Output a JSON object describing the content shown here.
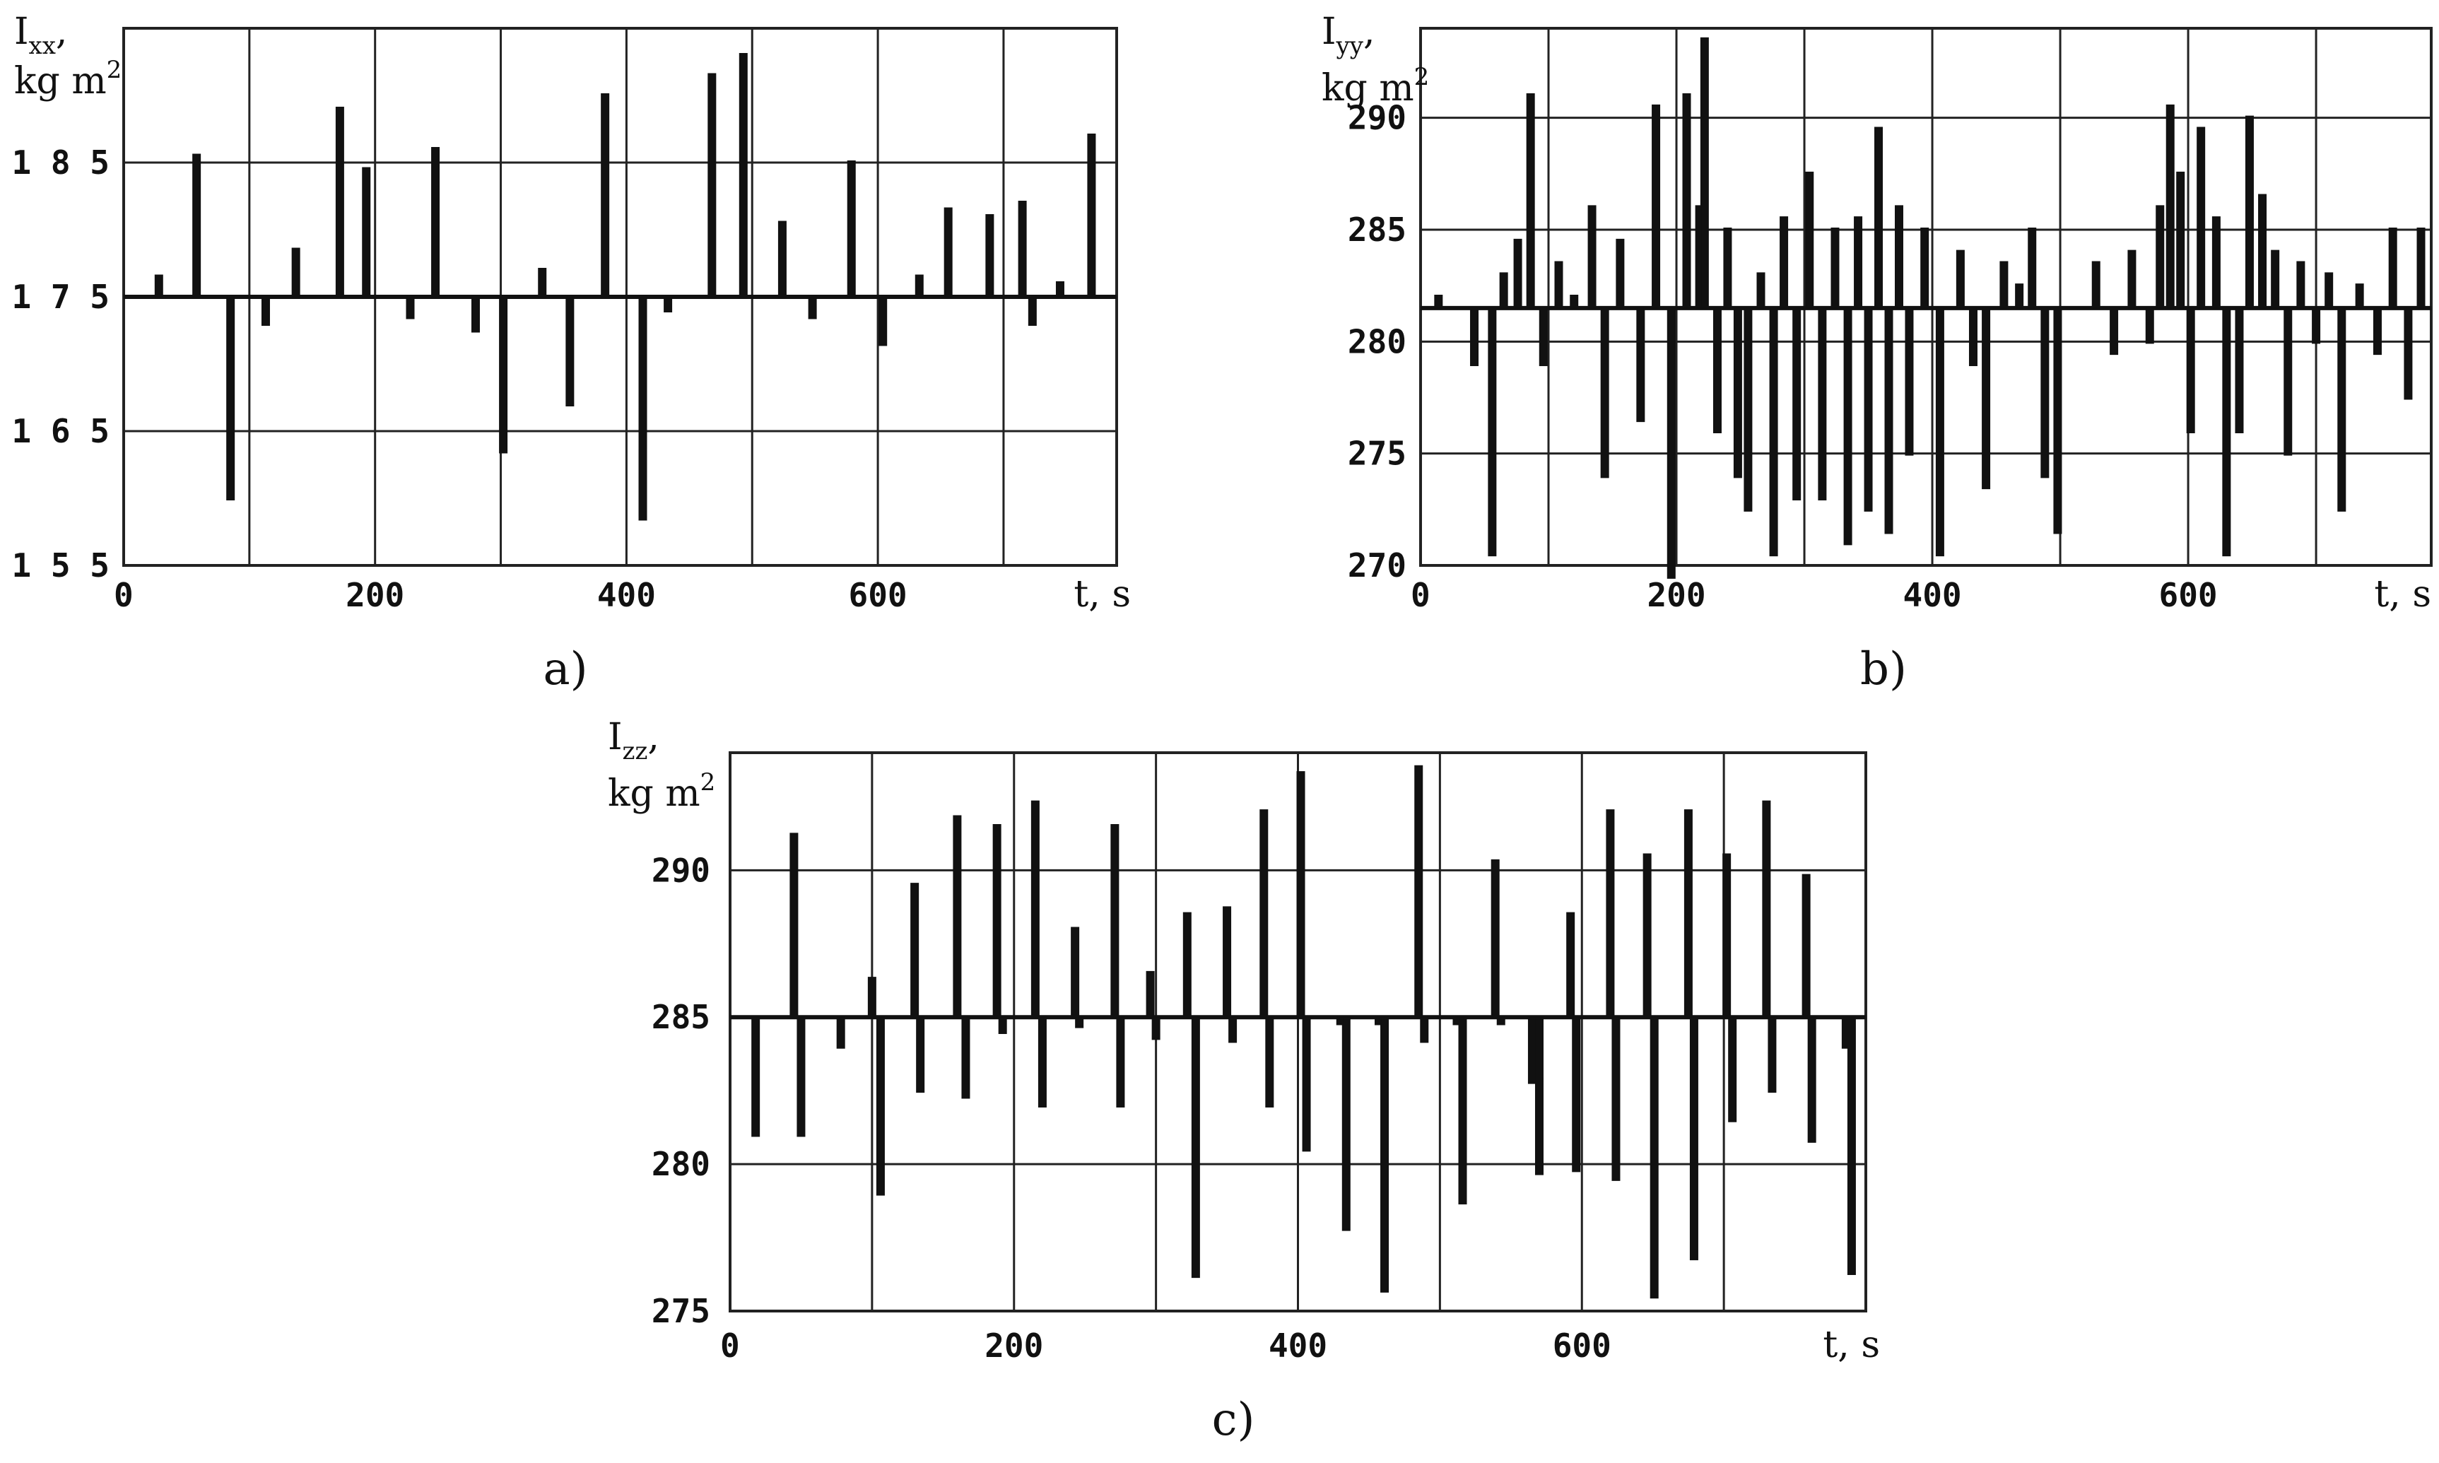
{
  "chart_data": [
    {
      "type": "line",
      "panel_label": "a)",
      "ylabel": {
        "main": "I",
        "sub": "xx",
        "tail": ",",
        "unit": "kg m",
        "unit_sup": "2"
      },
      "xlabel": "t, s",
      "xlim": [
        0,
        790
      ],
      "ylim": [
        155,
        195
      ],
      "xticks": [
        0,
        200,
        400,
        600
      ],
      "xtick_labels": [
        "0",
        "200",
        "400",
        "600"
      ],
      "yticks": [
        155,
        165,
        175,
        185
      ],
      "ytick_labels": [
        "1 5 5",
        "1 6 5",
        "1 7 5",
        "1 8 5"
      ],
      "xgrid": [
        100,
        200,
        300,
        400,
        500,
        600,
        700
      ],
      "ygrid": [
        165,
        175,
        185
      ],
      "baseline": 175,
      "series": [
        {
          "values": [
            [
              28,
              176.5
            ],
            [
              58,
              185.5
            ],
            [
              85,
              160
            ],
            [
              113,
              173
            ],
            [
              137,
              178.5
            ],
            [
              172,
              189
            ],
            [
              193,
              184.5
            ],
            [
              228,
              173.5
            ],
            [
              248,
              186
            ],
            [
              280,
              172.5
            ],
            [
              302,
              163.5
            ],
            [
              333,
              177
            ],
            [
              355,
              167
            ],
            [
              383,
              190
            ],
            [
              413,
              158.5
            ],
            [
              433,
              174
            ],
            [
              468,
              191.5
            ],
            [
              493,
              193
            ],
            [
              524,
              180.5
            ],
            [
              548,
              173.5
            ],
            [
              579,
              185
            ],
            [
              604,
              171.5
            ],
            [
              633,
              176.5
            ],
            [
              656,
              181.5
            ],
            [
              689,
              181
            ],
            [
              715,
              182
            ],
            [
              723,
              173
            ],
            [
              745,
              176
            ],
            [
              770,
              187
            ]
          ]
        }
      ]
    },
    {
      "type": "line",
      "panel_label": "b)",
      "ylabel": {
        "main": "I",
        "sub": "yy",
        "tail": ",",
        "unit": "kg m",
        "unit_sup": "2"
      },
      "xlabel": "t, s",
      "xlim": [
        0,
        790
      ],
      "ylim": [
        270,
        294
      ],
      "xticks": [
        0,
        200,
        400,
        600
      ],
      "xtick_labels": [
        "0",
        "200",
        "400",
        "600"
      ],
      "yticks": [
        270,
        275,
        280,
        285,
        290
      ],
      "ytick_labels": [
        "270",
        "275",
        "280",
        "285",
        "290"
      ],
      "xgrid": [
        100,
        200,
        300,
        400,
        500,
        600,
        700
      ],
      "ygrid": [
        275,
        280,
        285,
        290
      ],
      "baseline": 281.5,
      "series": [
        {
          "values": [
            [
              14,
              282
            ],
            [
              42,
              279
            ],
            [
              56,
              270.5
            ],
            [
              65,
              283
            ],
            [
              76,
              284.5
            ],
            [
              86,
              291
            ],
            [
              96,
              279
            ],
            [
              108,
              283.5
            ],
            [
              120,
              282
            ],
            [
              134,
              286
            ],
            [
              144,
              274
            ],
            [
              156,
              284.5
            ],
            [
              172,
              276.5
            ],
            [
              184,
              290.5
            ],
            [
              196,
              269.5
            ],
            [
              208,
              291
            ],
            [
              218,
              286
            ],
            [
              222,
              293.5
            ],
            [
              232,
              276
            ],
            [
              240,
              285
            ],
            [
              248,
              274
            ],
            [
              256,
              272.5
            ],
            [
              266,
              283
            ],
            [
              276,
              270.5
            ],
            [
              284,
              285.5
            ],
            [
              294,
              273
            ],
            [
              304,
              287.5
            ],
            [
              314,
              273
            ],
            [
              324,
              285
            ],
            [
              334,
              271
            ],
            [
              342,
              285.5
            ],
            [
              350,
              272.5
            ],
            [
              358,
              289.5
            ],
            [
              366,
              271.5
            ],
            [
              374,
              286
            ],
            [
              382,
              275
            ],
            [
              394,
              285
            ],
            [
              406,
              270.5
            ],
            [
              422,
              284
            ],
            [
              432,
              279
            ],
            [
              442,
              273.5
            ],
            [
              456,
              283.5
            ],
            [
              468,
              282.5
            ],
            [
              478,
              285
            ],
            [
              488,
              274
            ],
            [
              498,
              271.5
            ],
            [
              528,
              283.5
            ],
            [
              542,
              279.5
            ],
            [
              556,
              284
            ],
            [
              570,
              280
            ],
            [
              578,
              286
            ],
            [
              586,
              290.5
            ],
            [
              594,
              287.5
            ],
            [
              602,
              276
            ],
            [
              610,
              289.5
            ],
            [
              622,
              285.5
            ],
            [
              630,
              270.5
            ],
            [
              640,
              276
            ],
            [
              648,
              290
            ],
            [
              658,
              286.5
            ],
            [
              668,
              284
            ],
            [
              678,
              275
            ],
            [
              688,
              283.5
            ],
            [
              700,
              280
            ],
            [
              710,
              283
            ],
            [
              720,
              272.5
            ],
            [
              734,
              282.5
            ],
            [
              748,
              279.5
            ],
            [
              760,
              285
            ],
            [
              772,
              277.5
            ],
            [
              782,
              285
            ]
          ]
        }
      ]
    },
    {
      "type": "line",
      "panel_label": "c)",
      "ylabel": {
        "main": "I",
        "sub": "zz",
        "tail": ",",
        "unit": "kg m",
        "unit_sup": "2"
      },
      "xlabel": "t, s",
      "xlim": [
        0,
        800
      ],
      "ylim": [
        275,
        294
      ],
      "xticks": [
        0,
        200,
        400,
        600
      ],
      "xtick_labels": [
        "0",
        "200",
        "400",
        "600"
      ],
      "yticks": [
        275,
        280,
        285,
        290
      ],
      "ytick_labels": [
        "275",
        "280",
        "285",
        "290"
      ],
      "xgrid": [
        100,
        200,
        300,
        400,
        500,
        600,
        700
      ],
      "ygrid": [
        280,
        285,
        290
      ],
      "baseline": 285,
      "series": [
        {
          "values": [
            [
              18,
              281
            ],
            [
              45,
              291.2
            ],
            [
              50,
              281
            ],
            [
              78,
              284
            ],
            [
              100,
              286.3
            ],
            [
              106,
              279
            ],
            [
              130,
              289.5
            ],
            [
              134,
              282.5
            ],
            [
              160,
              291.8
            ],
            [
              166,
              282.3
            ],
            [
              188,
              291.5
            ],
            [
              192,
              284.5
            ],
            [
              215,
              292.3
            ],
            [
              220,
              282
            ],
            [
              243,
              288
            ],
            [
              246,
              284.7
            ],
            [
              271,
              291.5
            ],
            [
              275,
              282
            ],
            [
              296,
              286.5
            ],
            [
              300,
              284.3
            ],
            [
              322,
              288.5
            ],
            [
              328,
              276.2
            ],
            [
              350,
              288.7
            ],
            [
              354,
              284.2
            ],
            [
              376,
              292
            ],
            [
              380,
              282
            ],
            [
              402,
              293.3
            ],
            [
              406,
              280.5
            ],
            [
              430,
              284.8
            ],
            [
              434,
              277.8
            ],
            [
              457,
              284.8
            ],
            [
              461,
              275.7
            ],
            [
              485,
              293.5
            ],
            [
              489,
              284.2
            ],
            [
              512,
              284.8
            ],
            [
              516,
              278.7
            ],
            [
              539,
              290.3
            ],
            [
              543,
              284.8
            ],
            [
              565,
              282.8
            ],
            [
              570,
              279.7
            ],
            [
              592,
              288.5
            ],
            [
              596,
              279.8
            ],
            [
              620,
              292
            ],
            [
              624,
              279.5
            ],
            [
              646,
              290.5
            ],
            [
              651,
              275.5
            ],
            [
              675,
              292
            ],
            [
              679,
              276.8
            ],
            [
              702,
              290.5
            ],
            [
              706,
              281.5
            ],
            [
              730,
              292.3
            ],
            [
              734,
              282.5
            ],
            [
              758,
              289.8
            ],
            [
              762,
              280.8
            ],
            [
              786,
              284
            ],
            [
              790,
              276.3
            ]
          ]
        }
      ]
    }
  ]
}
